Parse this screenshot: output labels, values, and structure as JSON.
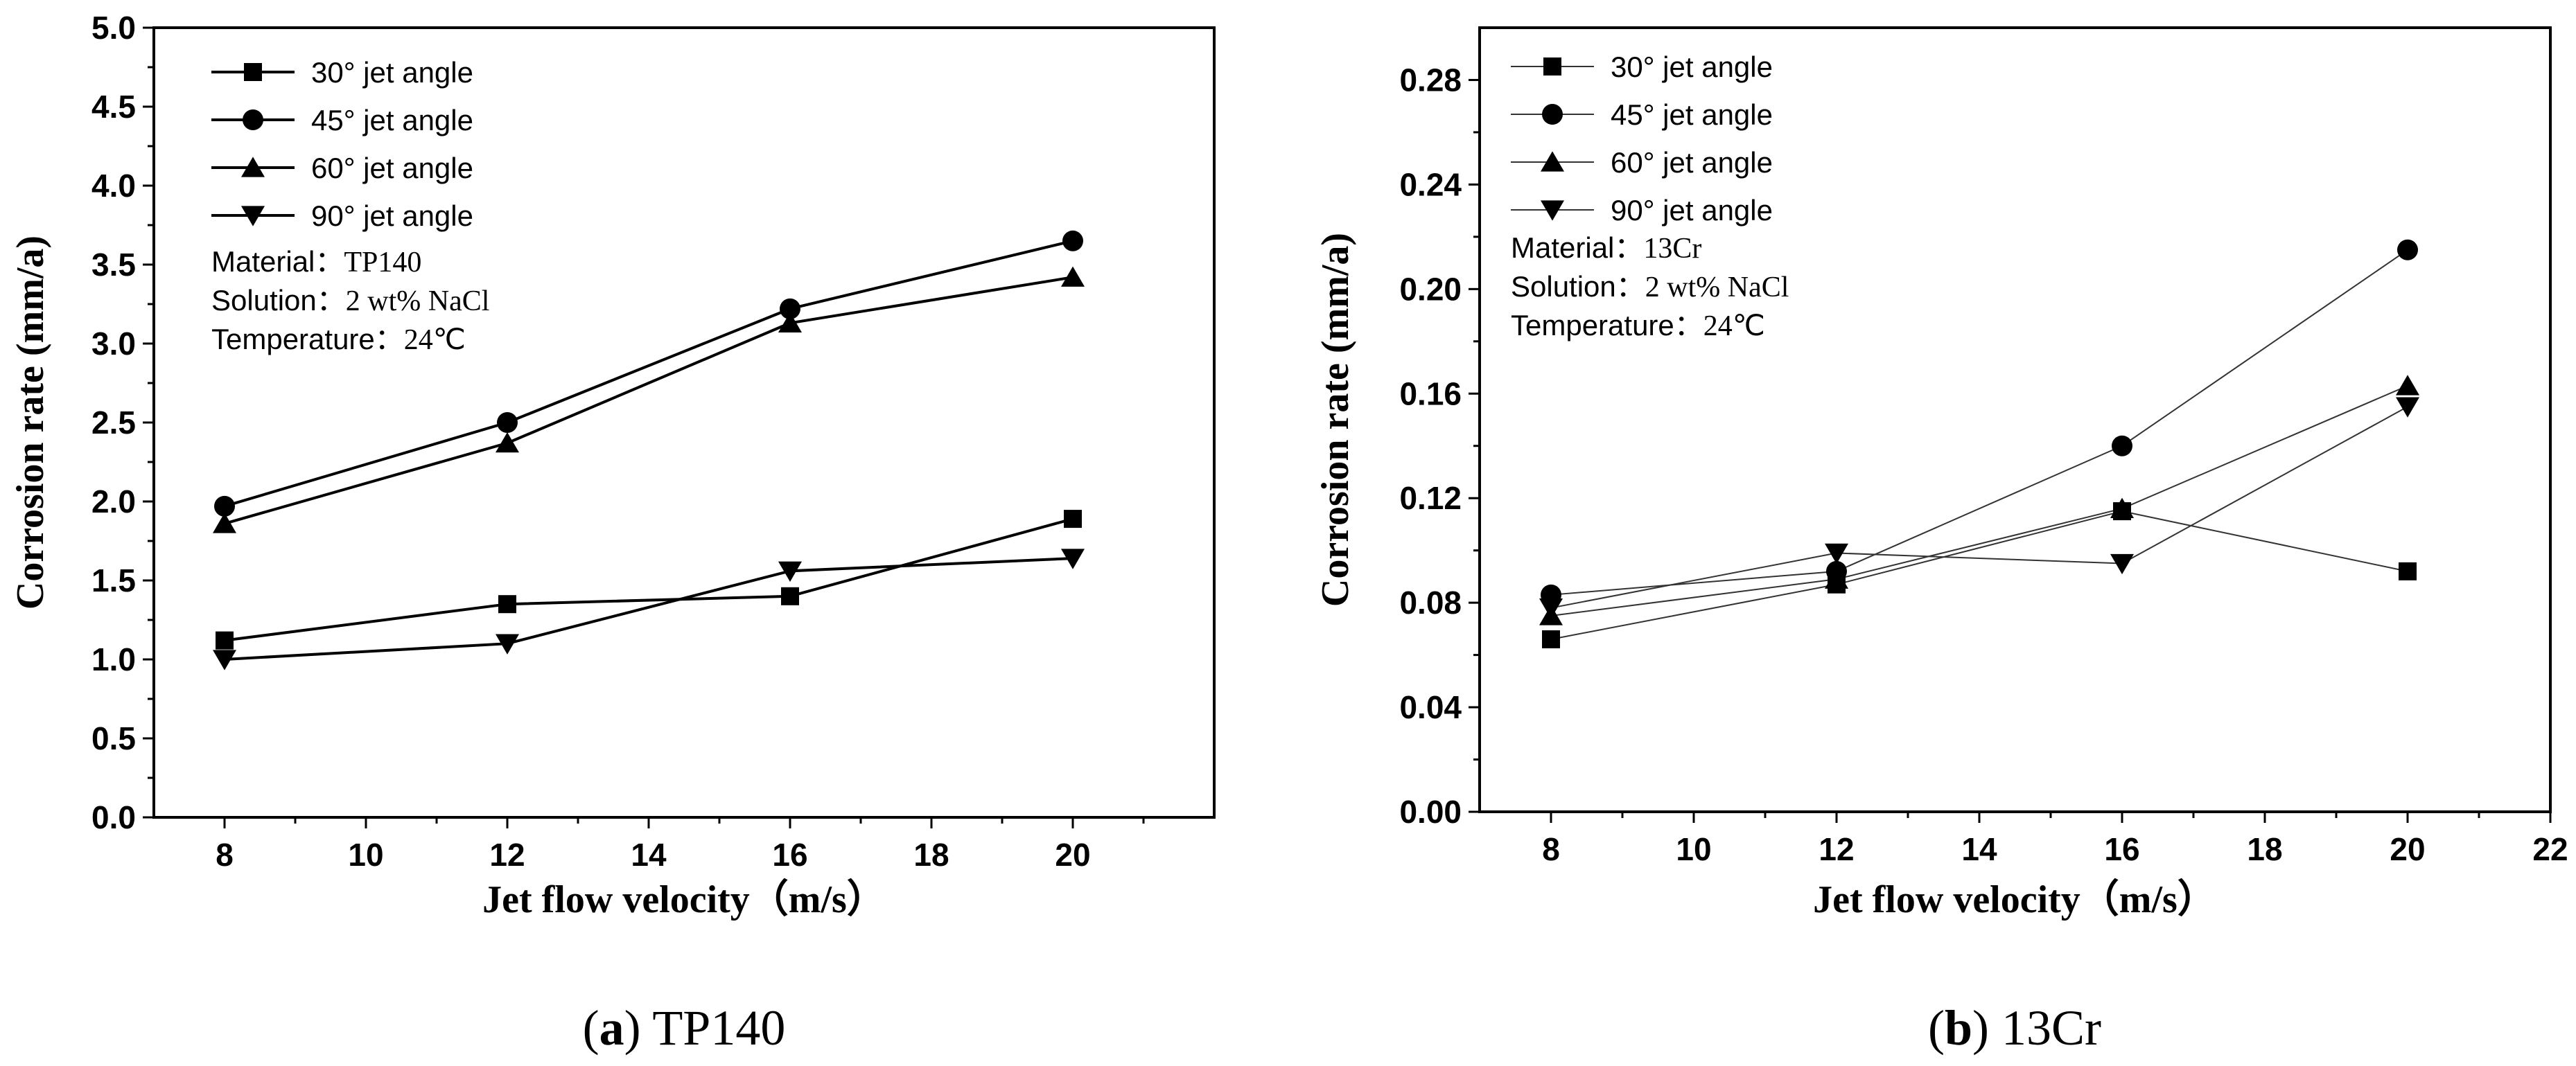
{
  "chart_data": [
    {
      "type": "line",
      "panel_caption": {
        "letter": "a",
        "text": "TP140"
      },
      "xlabel": "Jet flow velocity（m/s）",
      "ylabel": "Corrosion rate (mm/a)",
      "xlim": [
        7,
        22
      ],
      "ylim": [
        0,
        5.0
      ],
      "xticks": [
        "8",
        "10",
        "12",
        "14",
        "16",
        "18",
        "20"
      ],
      "xtick_values": [
        8,
        10,
        12,
        14,
        16,
        18,
        20
      ],
      "yticks": [
        "0.0",
        "0.5",
        "1.0",
        "1.5",
        "2.0",
        "2.5",
        "3.0",
        "3.5",
        "4.0",
        "4.5",
        "5.0"
      ],
      "ytick_values": [
        0,
        0.5,
        1.0,
        1.5,
        2.0,
        2.5,
        3.0,
        3.5,
        4.0,
        4.5,
        5.0
      ],
      "grid": false,
      "legend_position": "top-left",
      "annotations": [
        {
          "label": "Material：",
          "value": "TP140"
        },
        {
          "label": "Solution：",
          "value": "2 wt% NaCl"
        },
        {
          "label": "Temperature：",
          "value": "24℃"
        }
      ],
      "x": [
        8,
        12,
        16,
        20
      ],
      "series": [
        {
          "name": "30° jet angle",
          "marker": "square",
          "values": [
            1.12,
            1.35,
            1.4,
            1.89
          ]
        },
        {
          "name": "45° jet angle",
          "marker": "circle",
          "values": [
            1.97,
            2.5,
            3.22,
            3.65
          ]
        },
        {
          "name": "60° jet angle",
          "marker": "triangle-up",
          "values": [
            1.86,
            2.37,
            3.13,
            3.42
          ]
        },
        {
          "name": "90° jet angle",
          "marker": "triangle-down",
          "values": [
            1.0,
            1.1,
            1.56,
            1.64
          ]
        }
      ]
    },
    {
      "type": "line",
      "panel_caption": {
        "letter": "b",
        "text": "13Cr"
      },
      "xlabel": "Jet flow velocity（m/s）",
      "ylabel": "Corrosion rate (mm/a)",
      "xlim": [
        7,
        22
      ],
      "ylim": [
        0,
        0.3
      ],
      "xticks": [
        "8",
        "10",
        "12",
        "14",
        "16",
        "18",
        "20",
        "22"
      ],
      "xtick_values": [
        8,
        10,
        12,
        14,
        16,
        18,
        20,
        22
      ],
      "yticks": [
        "0.00",
        "0.04",
        "0.08",
        "0.12",
        "0.16",
        "0.20",
        "0.24",
        "0.28"
      ],
      "ytick_values": [
        0,
        0.04,
        0.08,
        0.12,
        0.16,
        0.2,
        0.24,
        0.28
      ],
      "grid": false,
      "legend_position": "top-left",
      "annotations": [
        {
          "label": "Material：",
          "value": "13Cr"
        },
        {
          "label": "Solution：",
          "value": "2 wt% NaCl"
        },
        {
          "label": "Temperature：",
          "value": "24℃"
        }
      ],
      "x": [
        8,
        12,
        16,
        20
      ],
      "series": [
        {
          "name": "30° jet angle",
          "marker": "square",
          "values": [
            0.066,
            0.087,
            0.115,
            0.092
          ]
        },
        {
          "name": "45° jet angle",
          "marker": "circle",
          "values": [
            0.083,
            0.092,
            0.14,
            0.215
          ]
        },
        {
          "name": "60° jet angle",
          "marker": "triangle-up",
          "values": [
            0.075,
            0.089,
            0.116,
            0.163
          ]
        },
        {
          "name": "90° jet angle",
          "marker": "triangle-down",
          "values": [
            0.078,
            0.099,
            0.095,
            0.155
          ]
        }
      ]
    }
  ]
}
